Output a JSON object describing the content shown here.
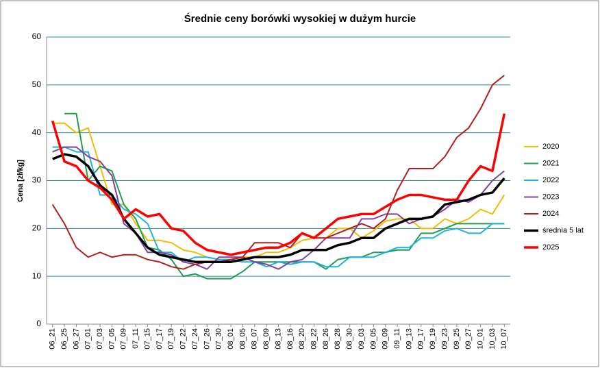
{
  "chart_data": {
    "type": "line",
    "title": "Średnie ceny borówki wysokiej w dużym hurcie",
    "y_label": "Cena [zł/kg]",
    "categories": [
      "06_21",
      "06_25",
      "06_27",
      "07_01",
      "07_03",
      "07_05",
      "07_09",
      "07_11",
      "07_15",
      "07_17",
      "07_19",
      "07_22",
      "07_24",
      "07_26",
      "07_30",
      "08_01",
      "08_05",
      "08_07",
      "08_09",
      "08_13",
      "08_16",
      "08_20",
      "08_22",
      "08_26",
      "08_28",
      "08_30",
      "09_03",
      "09_05",
      "09_09",
      "09_11",
      "09_13",
      "09_17",
      "09_19",
      "09_23",
      "09_25",
      "09_27",
      "10_01",
      "10_03",
      "10_07"
    ],
    "ylim": [
      0,
      60
    ],
    "yticks": [
      0,
      10,
      20,
      30,
      40,
      50,
      60
    ],
    "grid": true,
    "legend": "right",
    "series": [
      {
        "name": "2020",
        "color": "#f2bd00",
        "values": [
          42,
          42,
          40,
          41,
          33,
          25,
          25,
          21,
          17.5,
          17.5,
          17,
          15.5,
          15,
          14,
          13.5,
          13.5,
          14,
          14,
          15,
          15,
          16,
          17.5,
          18,
          18,
          20,
          20,
          18,
          19.5,
          21.5,
          22,
          22,
          20,
          20,
          22,
          21,
          22,
          24,
          23,
          27
        ]
      },
      {
        "name": "2021",
        "color": "#1e9e4e",
        "values": [
          null,
          44,
          44,
          30,
          33,
          32,
          25,
          22,
          16,
          15.5,
          13.5,
          10,
          10.5,
          9.5,
          9.5,
          9.5,
          11,
          13,
          13,
          13,
          13,
          13,
          13,
          11.5,
          13.5,
          14,
          14,
          15,
          15,
          15.5,
          15.5,
          19,
          19,
          20,
          21,
          21,
          21,
          21,
          21
        ]
      },
      {
        "name": "2022",
        "color": "#1fb2e0",
        "values": [
          37,
          37,
          36,
          36,
          27,
          27,
          24,
          23,
          21,
          15,
          15,
          13,
          14,
          14,
          13.5,
          13.5,
          13,
          13,
          12,
          13,
          12.5,
          13,
          13,
          12,
          12,
          14,
          14,
          14,
          15,
          16,
          16,
          18,
          18,
          19.5,
          20,
          19,
          19,
          21,
          21
        ]
      },
      {
        "name": "2023",
        "color": "#7e3fa0",
        "values": [
          36,
          37,
          37,
          35,
          34,
          31,
          21,
          19,
          15,
          15,
          14.5,
          13,
          12.5,
          11.5,
          14,
          14,
          14,
          13,
          12.5,
          11.5,
          13,
          13.5,
          15.5,
          18,
          18,
          18,
          22,
          22,
          23,
          23,
          21,
          22,
          22.5,
          24,
          26,
          25.5,
          27,
          30,
          32
        ]
      },
      {
        "name": "2024",
        "color": "#b01e1e",
        "values": [
          25,
          21,
          16,
          14,
          15,
          14,
          14.5,
          14.5,
          13.5,
          13,
          12,
          11.5,
          12.5,
          13,
          13,
          13.5,
          14,
          17,
          17,
          17,
          16,
          19,
          18,
          18,
          19,
          20,
          21,
          20,
          22,
          28,
          32.5,
          32.5,
          32.5,
          35,
          39,
          41,
          45,
          50,
          52
        ]
      },
      {
        "name": "średnia 5 lat",
        "color": "#000000",
        "values": [
          34.5,
          35.5,
          35,
          33,
          29,
          27,
          22,
          19,
          16,
          14.5,
          14,
          13.5,
          13,
          13,
          13,
          13,
          13.5,
          14,
          14,
          14,
          14.5,
          15.5,
          15.5,
          15.5,
          16.5,
          17,
          18,
          18,
          20,
          21,
          22,
          22,
          22.5,
          25,
          25.5,
          26,
          27,
          27.5,
          30.5
        ]
      },
      {
        "name": "2025",
        "color": "#ff0000",
        "values": [
          42.5,
          34,
          33,
          30,
          28.5,
          26,
          22,
          24,
          22.5,
          23,
          20,
          19.5,
          17,
          15.5,
          15,
          14.5,
          15,
          15.5,
          16,
          16,
          17,
          19,
          18,
          20,
          22,
          22.5,
          23,
          23,
          24.5,
          26,
          27,
          27,
          26.5,
          26,
          26,
          30,
          33,
          32,
          44
        ]
      }
    ]
  }
}
